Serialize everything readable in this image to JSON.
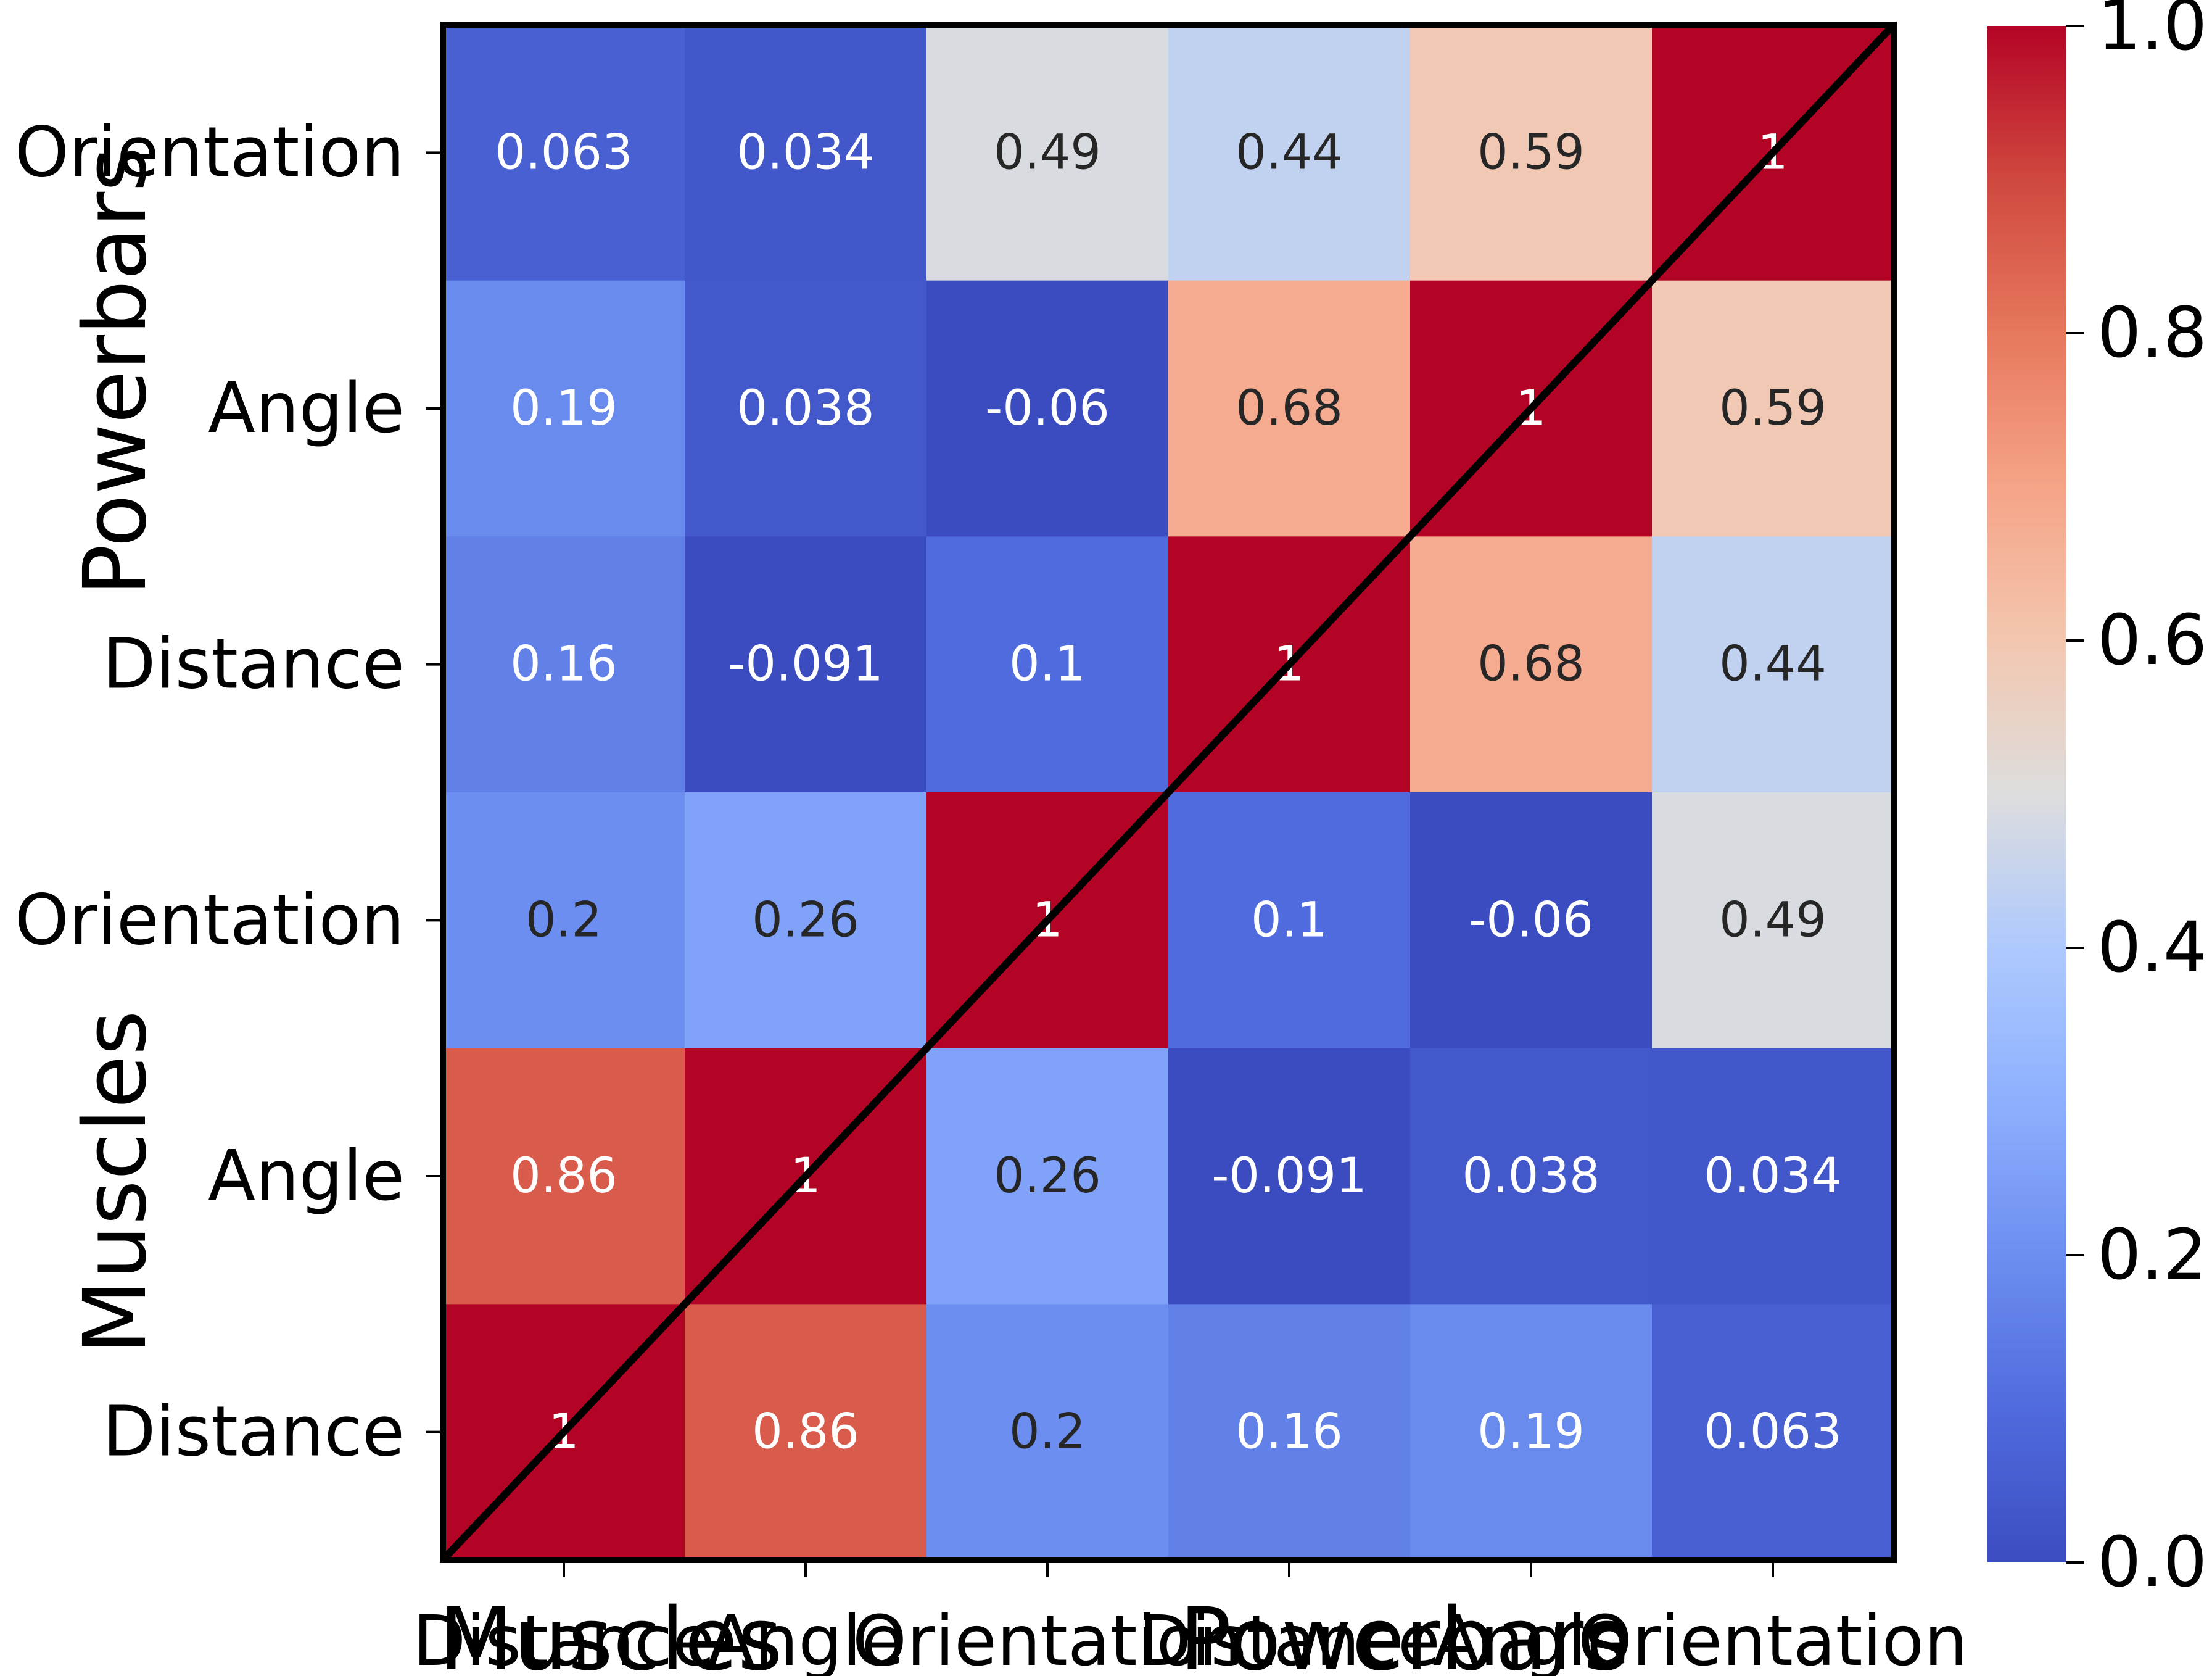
{
  "chart_data": {
    "type": "heatmap",
    "x_labels": [
      "Distance",
      "Angle",
      "Orientation",
      "Distance",
      "Angle",
      "Orientation"
    ],
    "y_labels_top_to_bottom": [
      "Orientation",
      "Angle",
      "Distance",
      "Orientation",
      "Angle",
      "Distance"
    ],
    "x_groups": [
      "Muscles",
      "Powerbars"
    ],
    "y_groups_top_to_bottom": [
      "Powerbars",
      "Muscles"
    ],
    "matrix_top_to_bottom": [
      [
        0.063,
        0.034,
        0.49,
        0.44,
        0.59,
        1
      ],
      [
        0.19,
        0.038,
        -0.06,
        0.68,
        1,
        0.59
      ],
      [
        0.16,
        -0.091,
        0.1,
        1,
        0.68,
        0.44
      ],
      [
        0.2,
        0.26,
        1,
        0.1,
        -0.06,
        0.49
      ],
      [
        0.86,
        1,
        0.26,
        -0.091,
        0.038,
        0.034
      ],
      [
        1,
        0.86,
        0.2,
        0.16,
        0.19,
        0.063
      ]
    ],
    "annotations_top_to_bottom": [
      [
        "0.063",
        "0.034",
        "0.49",
        "0.44",
        "0.59",
        "1"
      ],
      [
        "0.19",
        "0.038",
        "-0.06",
        "0.68",
        "1",
        "0.59"
      ],
      [
        "0.16",
        "-0.091",
        "0.1",
        "1",
        "0.68",
        "0.44"
      ],
      [
        "0.2",
        "0.26",
        "1",
        "0.1",
        "-0.06",
        "0.49"
      ],
      [
        "0.86",
        "1",
        "0.26",
        "-0.091",
        "0.038",
        "0.034"
      ],
      [
        "1",
        "0.86",
        "0.2",
        "0.16",
        "0.19",
        "0.063"
      ]
    ],
    "colormap": "coolwarm",
    "vmin": 0.0,
    "vmax": 1.0,
    "colorbar_ticks": [
      0.0,
      0.2,
      0.4,
      0.6,
      0.8,
      1.0
    ],
    "colorbar_tick_labels": [
      "0.0",
      "0.2",
      "0.4",
      "0.6",
      "0.8",
      "1.0"
    ],
    "diagonal_line": true,
    "frame_color": "#000000"
  }
}
